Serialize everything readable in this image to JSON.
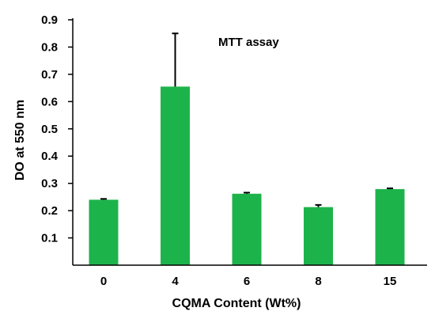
{
  "chart_data": {
    "type": "bar",
    "categories": [
      "0",
      "4",
      "6",
      "8",
      "15"
    ],
    "values": [
      0.24,
      0.655,
      0.262,
      0.213,
      0.279
    ],
    "errors": [
      0.003,
      0.195,
      0.004,
      0.008,
      0.003
    ],
    "ylim": [
      0,
      0.9
    ],
    "yticks": [
      "0.1",
      "0.2",
      "0.3",
      "0.4",
      "0.5",
      "0.6",
      "0.7",
      "0.8",
      "0.9"
    ],
    "xlabel": "CQMA Content (Wt%)",
    "ylabel": "DO at 550 nm",
    "annotation": "MTT assay",
    "bar_color": "#1db34b",
    "grid": false
  }
}
